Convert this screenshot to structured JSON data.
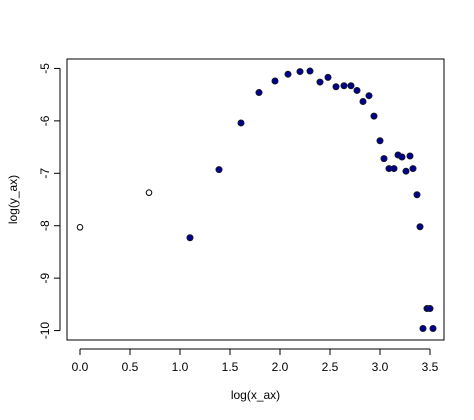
{
  "chart_data": {
    "type": "scatter",
    "xlabel": "log(x_ax)",
    "ylabel": "log(y_ax)",
    "xlim": [
      -0.13,
      3.64
    ],
    "ylim": [
      -10.18,
      -4.82
    ],
    "x_ticks": [
      0.0,
      0.5,
      1.0,
      1.5,
      2.0,
      2.5,
      3.0,
      3.5
    ],
    "x_tick_labels": [
      "0.0",
      "0.5",
      "1.0",
      "1.5",
      "2.0",
      "2.5",
      "3.0",
      "3.5"
    ],
    "y_ticks": [
      -10,
      -9,
      -8,
      -7,
      -6,
      -5
    ],
    "y_tick_labels": [
      "-10",
      "-9",
      "-8",
      "-7",
      "-6",
      "-5"
    ],
    "grid": false,
    "series": [
      {
        "marker": "open-circle",
        "color": "#000000",
        "points": [
          [
            0.0,
            -8.03
          ],
          [
            0.69,
            -7.37
          ]
        ]
      },
      {
        "marker": "filled-circle",
        "color": "#00008B",
        "points": [
          [
            1.1,
            -8.23
          ],
          [
            1.39,
            -6.93
          ],
          [
            1.61,
            -6.04
          ],
          [
            1.79,
            -5.46
          ],
          [
            1.95,
            -5.24
          ],
          [
            2.08,
            -5.11
          ],
          [
            2.2,
            -5.06
          ],
          [
            2.3,
            -5.05
          ],
          [
            2.4,
            -5.26
          ],
          [
            2.48,
            -5.17
          ],
          [
            2.56,
            -5.35
          ],
          [
            2.64,
            -5.33
          ],
          [
            2.71,
            -5.33
          ],
          [
            2.77,
            -5.42
          ],
          [
            2.83,
            -5.63
          ],
          [
            2.89,
            -5.52
          ],
          [
            2.94,
            -5.91
          ],
          [
            3.0,
            -6.38
          ],
          [
            3.04,
            -6.72
          ],
          [
            3.09,
            -6.91
          ],
          [
            3.14,
            -6.91
          ],
          [
            3.18,
            -6.65
          ],
          [
            3.22,
            -6.69
          ],
          [
            3.26,
            -6.96
          ],
          [
            3.3,
            -6.67
          ],
          [
            3.33,
            -6.91
          ],
          [
            3.37,
            -7.41
          ],
          [
            3.4,
            -8.02
          ],
          [
            3.43,
            -9.96
          ],
          [
            3.47,
            -9.58
          ],
          [
            3.5,
            -9.58
          ],
          [
            3.53,
            -9.96
          ]
        ]
      }
    ]
  }
}
